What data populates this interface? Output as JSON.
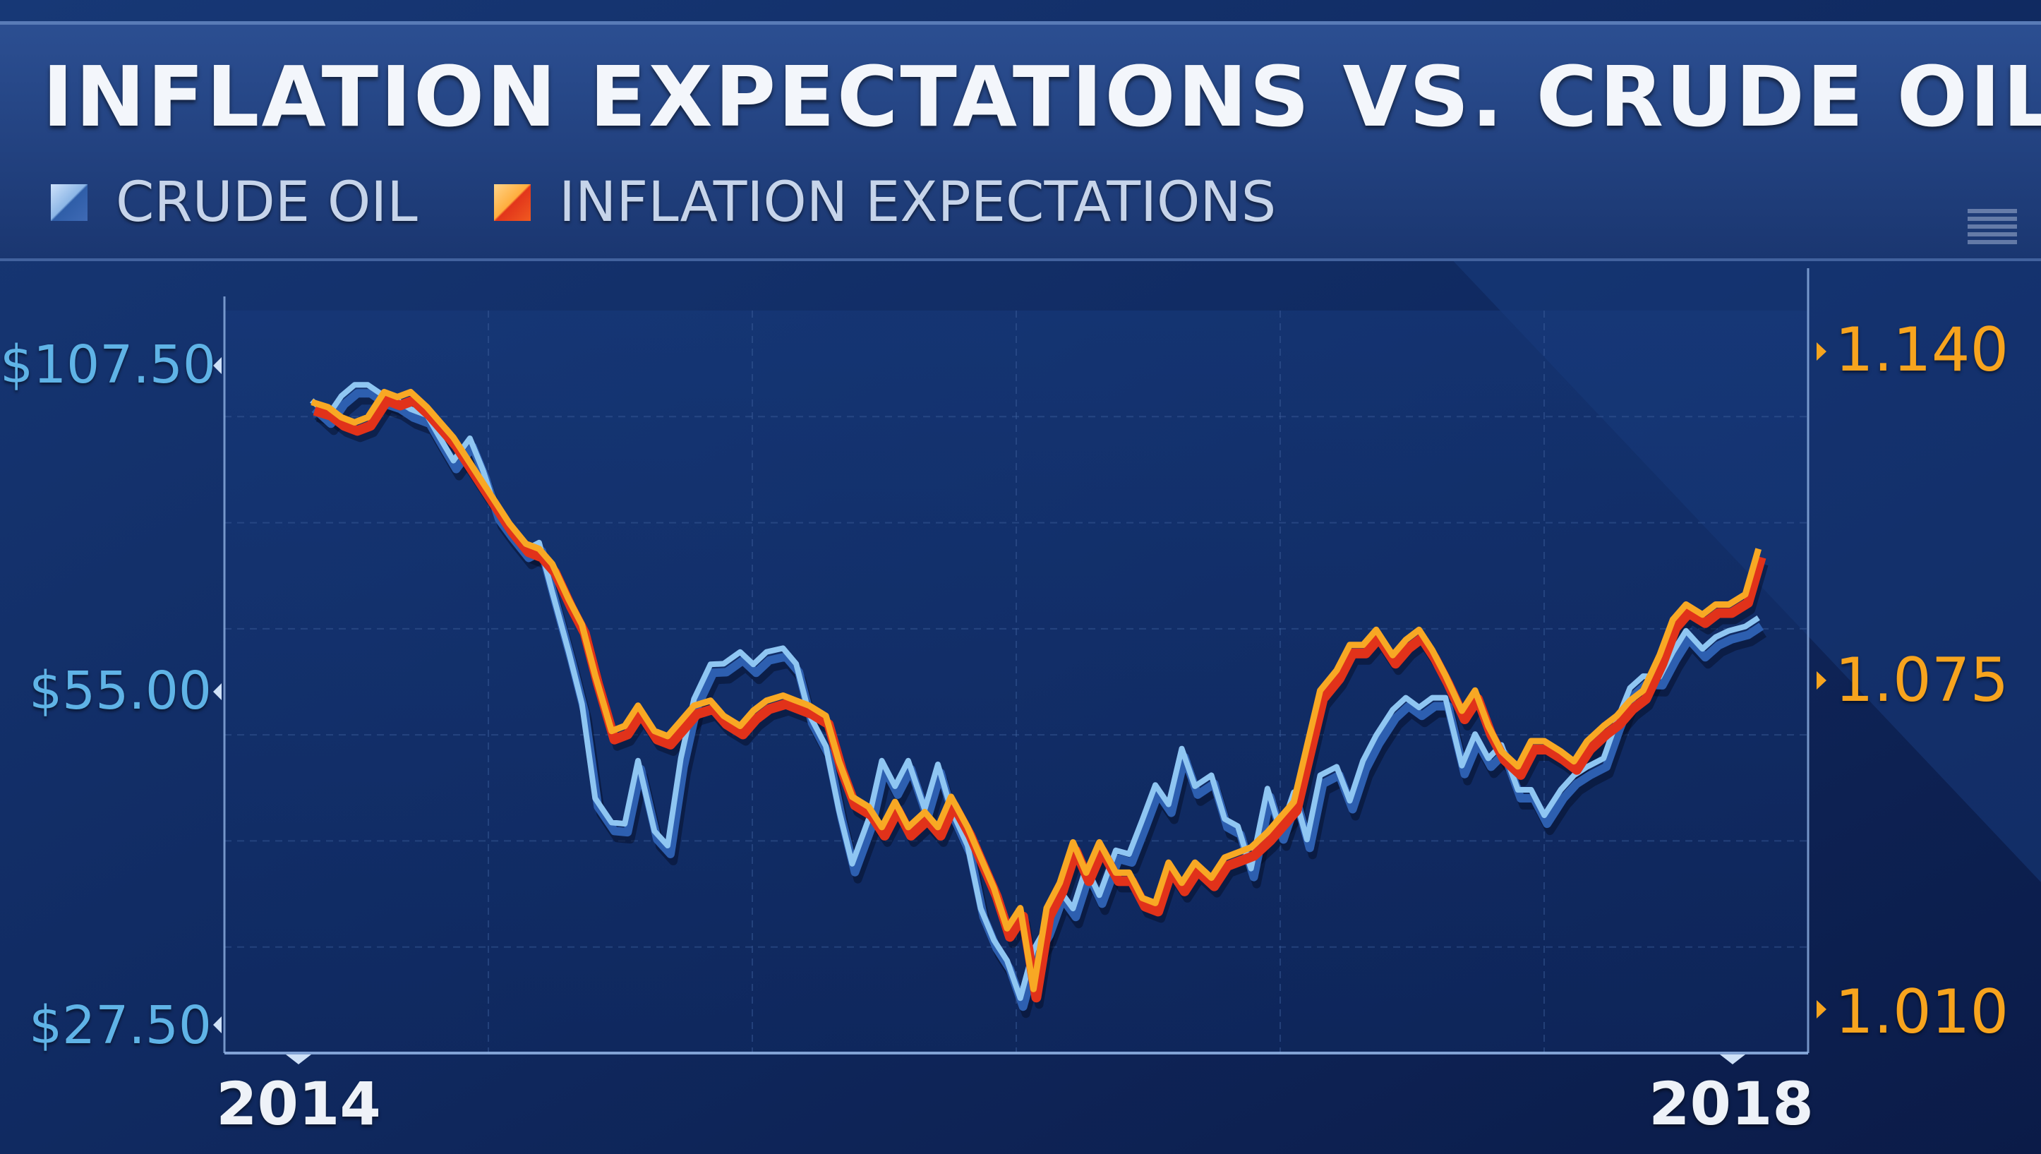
{
  "chart_data": {
    "type": "line",
    "title": "INFLATION EXPECTATIONS VS. CRUDE OIL",
    "legend": [
      "CRUDE OIL",
      "INFLATION EXPECTATIONS"
    ],
    "legend_position": "top-left",
    "x_ticks": [
      "2014",
      "2018"
    ],
    "x_range": [
      2014.0,
      2018.33
    ],
    "y_left": {
      "ticks": [
        "$107.50",
        "$55.00",
        "$27.50"
      ],
      "label": ""
    },
    "y_right": {
      "ticks": [
        "1.140",
        "1.075",
        "1.010"
      ],
      "label": ""
    },
    "grid": true,
    "colors": {
      "crude_oil": "#8fc6f2",
      "crude_oil_shadow": "#2d5fb0",
      "inflation": "#f8a824",
      "inflation_shadow": "#e1321a",
      "left_axis": "#5fb3e6",
      "right_axis": "#f7a41e"
    },
    "series": [
      {
        "name": "CRUDE OIL",
        "axis": "left",
        "points": [
          [
            2014.04,
            101.9
          ],
          [
            2014.09,
            99.5
          ],
          [
            2014.13,
            102.6
          ],
          [
            2014.17,
            104.4
          ],
          [
            2014.21,
            104.4
          ],
          [
            2014.26,
            102.6
          ],
          [
            2014.3,
            101.9
          ],
          [
            2014.34,
            100.5
          ],
          [
            2014.39,
            99.5
          ],
          [
            2014.43,
            95.8
          ],
          [
            2014.47,
            92.2
          ],
          [
            2014.52,
            95.8
          ],
          [
            2014.56,
            90.6
          ],
          [
            2014.6,
            84.1
          ],
          [
            2014.64,
            81.2
          ],
          [
            2014.69,
            77.9
          ],
          [
            2014.73,
            79.0
          ],
          [
            2014.77,
            71.0
          ],
          [
            2014.82,
            61.4
          ],
          [
            2014.86,
            54.0
          ],
          [
            2014.9,
            46.2
          ],
          [
            2014.95,
            44.2
          ],
          [
            2014.99,
            44.1
          ],
          [
            2015.03,
            49.3
          ],
          [
            2015.08,
            43.5
          ],
          [
            2015.12,
            42.3
          ],
          [
            2015.16,
            49.5
          ],
          [
            2015.2,
            54.4
          ],
          [
            2015.25,
            59.4
          ],
          [
            2015.29,
            59.5
          ],
          [
            2015.34,
            61.4
          ],
          [
            2015.38,
            59.4
          ],
          [
            2015.42,
            61.4
          ],
          [
            2015.47,
            62.0
          ],
          [
            2015.51,
            59.5
          ],
          [
            2015.55,
            53.1
          ],
          [
            2015.6,
            50.5
          ],
          [
            2015.64,
            45.2
          ],
          [
            2015.68,
            40.8
          ],
          [
            2015.73,
            44.5
          ],
          [
            2015.77,
            49.3
          ],
          [
            2015.81,
            47.2
          ],
          [
            2015.85,
            49.3
          ],
          [
            2015.9,
            45.3
          ],
          [
            2015.94,
            49.0
          ],
          [
            2015.98,
            45.3
          ],
          [
            2016.03,
            42.3
          ],
          [
            2016.07,
            37.1
          ],
          [
            2016.11,
            34.5
          ],
          [
            2016.15,
            32.8
          ],
          [
            2016.19,
            29.7
          ],
          [
            2016.23,
            33.7
          ],
          [
            2016.27,
            35.6
          ],
          [
            2016.31,
            38.6
          ],
          [
            2016.35,
            37.1
          ],
          [
            2016.39,
            40.5
          ],
          [
            2016.43,
            38.2
          ],
          [
            2016.48,
            41.9
          ],
          [
            2016.52,
            41.6
          ],
          [
            2016.56,
            44.4
          ],
          [
            2016.6,
            47.3
          ],
          [
            2016.64,
            45.7
          ],
          [
            2016.68,
            50.3
          ],
          [
            2016.72,
            47.2
          ],
          [
            2016.77,
            48.1
          ],
          [
            2016.81,
            44.5
          ],
          [
            2016.85,
            43.9
          ],
          [
            2016.89,
            40.4
          ],
          [
            2016.94,
            47.0
          ],
          [
            2016.98,
            43.5
          ],
          [
            2017.02,
            46.7
          ],
          [
            2017.06,
            42.8
          ],
          [
            2017.1,
            48.1
          ],
          [
            2017.15,
            48.8
          ],
          [
            2017.19,
            46.0
          ],
          [
            2017.23,
            49.3
          ],
          [
            2017.27,
            51.4
          ],
          [
            2017.32,
            53.5
          ],
          [
            2017.36,
            54.5
          ],
          [
            2017.4,
            53.7
          ],
          [
            2017.44,
            54.5
          ],
          [
            2017.48,
            54.5
          ],
          [
            2017.53,
            48.9
          ],
          [
            2017.57,
            51.5
          ],
          [
            2017.61,
            49.5
          ],
          [
            2017.65,
            50.6
          ],
          [
            2017.7,
            46.9
          ],
          [
            2017.74,
            46.9
          ],
          [
            2017.78,
            44.8
          ],
          [
            2017.83,
            46.9
          ],
          [
            2017.87,
            48.1
          ],
          [
            2017.91,
            48.8
          ],
          [
            2017.96,
            49.5
          ],
          [
            2018.0,
            52.6
          ],
          [
            2018.04,
            55.6
          ],
          [
            2018.08,
            57.5
          ],
          [
            2018.13,
            57.4
          ],
          [
            2018.17,
            61.4
          ],
          [
            2018.21,
            64.8
          ],
          [
            2018.26,
            61.9
          ],
          [
            2018.3,
            63.8
          ],
          [
            2018.34,
            64.8
          ],
          [
            2018.39,
            65.5
          ],
          [
            2018.43,
            66.9
          ]
        ]
      },
      {
        "name": "INFLATION EXPECTATIONS",
        "axis": "right",
        "points": [
          [
            2014.04,
            1.13
          ],
          [
            2014.09,
            1.129
          ],
          [
            2014.13,
            1.127
          ],
          [
            2014.17,
            1.126
          ],
          [
            2014.21,
            1.127
          ],
          [
            2014.26,
            1.132
          ],
          [
            2014.3,
            1.131
          ],
          [
            2014.34,
            1.132
          ],
          [
            2014.39,
            1.129
          ],
          [
            2014.43,
            1.126
          ],
          [
            2014.47,
            1.123
          ],
          [
            2014.52,
            1.118
          ],
          [
            2014.56,
            1.114
          ],
          [
            2014.6,
            1.11
          ],
          [
            2014.64,
            1.106
          ],
          [
            2014.69,
            1.102
          ],
          [
            2014.73,
            1.101
          ],
          [
            2014.77,
            1.098
          ],
          [
            2014.82,
            1.091
          ],
          [
            2014.86,
            1.086
          ],
          [
            2014.9,
            1.076
          ],
          [
            2014.95,
            1.065
          ],
          [
            2014.99,
            1.066
          ],
          [
            2015.03,
            1.07
          ],
          [
            2015.08,
            1.065
          ],
          [
            2015.12,
            1.064
          ],
          [
            2015.16,
            1.067
          ],
          [
            2015.2,
            1.07
          ],
          [
            2015.25,
            1.071
          ],
          [
            2015.29,
            1.068
          ],
          [
            2015.34,
            1.066
          ],
          [
            2015.38,
            1.069
          ],
          [
            2015.42,
            1.071
          ],
          [
            2015.47,
            1.072
          ],
          [
            2015.51,
            1.071
          ],
          [
            2015.55,
            1.07
          ],
          [
            2015.6,
            1.068
          ],
          [
            2015.64,
            1.059
          ],
          [
            2015.68,
            1.052
          ],
          [
            2015.73,
            1.05
          ],
          [
            2015.77,
            1.046
          ],
          [
            2015.81,
            1.051
          ],
          [
            2015.85,
            1.046
          ],
          [
            2015.9,
            1.049
          ],
          [
            2015.94,
            1.046
          ],
          [
            2015.98,
            1.052
          ],
          [
            2016.03,
            1.046
          ],
          [
            2016.07,
            1.04
          ],
          [
            2016.11,
            1.034
          ],
          [
            2016.15,
            1.026
          ],
          [
            2016.19,
            1.03
          ],
          [
            2016.23,
            1.014
          ],
          [
            2016.27,
            1.03
          ],
          [
            2016.31,
            1.035
          ],
          [
            2016.35,
            1.043
          ],
          [
            2016.39,
            1.037
          ],
          [
            2016.43,
            1.043
          ],
          [
            2016.48,
            1.037
          ],
          [
            2016.52,
            1.037
          ],
          [
            2016.56,
            1.032
          ],
          [
            2016.6,
            1.031
          ],
          [
            2016.64,
            1.039
          ],
          [
            2016.68,
            1.035
          ],
          [
            2016.72,
            1.039
          ],
          [
            2016.77,
            1.036
          ],
          [
            2016.81,
            1.04
          ],
          [
            2016.85,
            1.041
          ],
          [
            2016.89,
            1.042
          ],
          [
            2016.94,
            1.045
          ],
          [
            2016.98,
            1.048
          ],
          [
            2017.02,
            1.051
          ],
          [
            2017.06,
            1.062
          ],
          [
            2017.1,
            1.073
          ],
          [
            2017.15,
            1.077
          ],
          [
            2017.19,
            1.082
          ],
          [
            2017.23,
            1.082
          ],
          [
            2017.27,
            1.085
          ],
          [
            2017.32,
            1.08
          ],
          [
            2017.36,
            1.083
          ],
          [
            2017.4,
            1.085
          ],
          [
            2017.44,
            1.081
          ],
          [
            2017.48,
            1.076
          ],
          [
            2017.53,
            1.069
          ],
          [
            2017.57,
            1.073
          ],
          [
            2017.61,
            1.066
          ],
          [
            2017.65,
            1.061
          ],
          [
            2017.7,
            1.058
          ],
          [
            2017.74,
            1.063
          ],
          [
            2017.78,
            1.063
          ],
          [
            2017.83,
            1.061
          ],
          [
            2017.87,
            1.059
          ],
          [
            2017.91,
            1.063
          ],
          [
            2017.96,
            1.066
          ],
          [
            2018.0,
            1.068
          ],
          [
            2018.04,
            1.071
          ],
          [
            2018.08,
            1.073
          ],
          [
            2018.13,
            1.08
          ],
          [
            2018.17,
            1.087
          ],
          [
            2018.21,
            1.09
          ],
          [
            2018.26,
            1.088
          ],
          [
            2018.3,
            1.09
          ],
          [
            2018.34,
            1.09
          ],
          [
            2018.39,
            1.092
          ],
          [
            2018.43,
            1.101
          ]
        ]
      }
    ]
  }
}
